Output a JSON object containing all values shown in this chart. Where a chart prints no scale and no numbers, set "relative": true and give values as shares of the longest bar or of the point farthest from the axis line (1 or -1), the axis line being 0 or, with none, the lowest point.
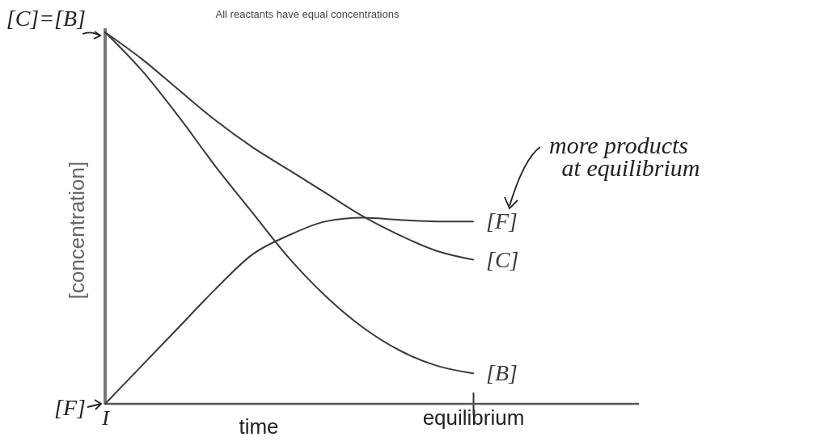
{
  "chart_data": {
    "type": "line",
    "relative": true,
    "title": "All reactants have equal concentrations",
    "xlabel": "time",
    "ylabel": "[concentration]",
    "categories": [
      "I",
      null,
      null,
      null,
      null,
      null,
      null,
      null,
      null,
      null,
      "equilibrium"
    ],
    "series": [
      {
        "name": "[F]",
        "color": "#3a3a3a",
        "values": [
          0,
          0.103,
          0.206,
          0.309,
          0.402,
          0.454,
          0.491,
          0.501,
          0.495,
          0.491,
          0.491
        ]
      },
      {
        "name": "[C]",
        "color": "#3a3a3a",
        "values": [
          1,
          0.928,
          0.845,
          0.763,
          0.691,
          0.629,
          0.567,
          0.505,
          0.454,
          0.412,
          0.388
        ]
      },
      {
        "name": "[B]",
        "color": "#3a3a3a",
        "values": [
          1,
          0.897,
          0.773,
          0.639,
          0.515,
          0.392,
          0.289,
          0.206,
          0.144,
          0.103,
          0.082
        ]
      }
    ],
    "annotations": [
      {
        "text": "[C]=[B]",
        "x": "I",
        "y": 1
      },
      {
        "text": "[F]",
        "x": "I",
        "y": 0
      },
      "more products at equilibrium"
    ]
  }
}
